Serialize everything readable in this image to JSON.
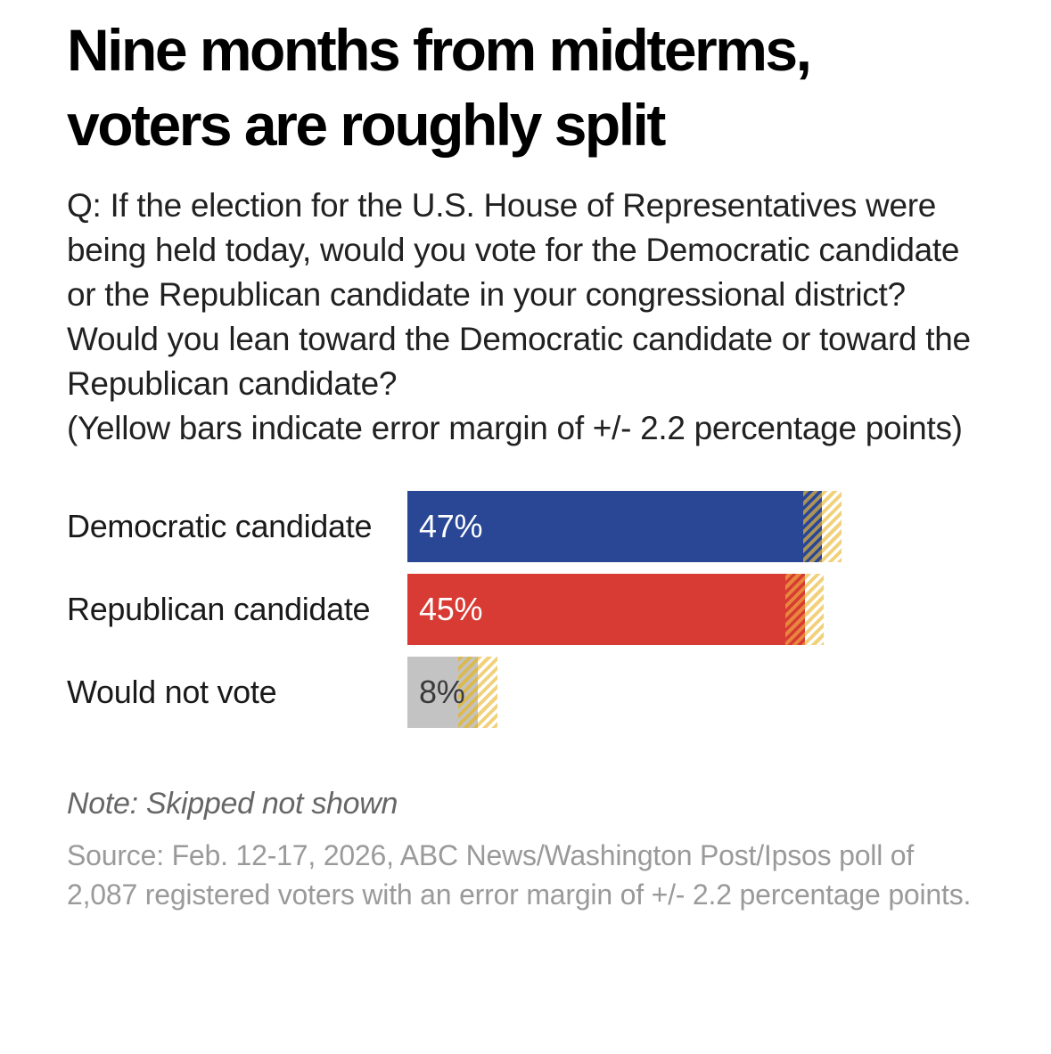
{
  "header": {
    "title": "Nine months from midterms, voters are roughly split"
  },
  "question": {
    "text": "Q: If the election for the U.S. House of Representatives were being held today, would you vote for the Democratic candidate or the Republican candidate in your congressional district? Would you lean toward the Democratic candidate or toward the Republican candidate?",
    "error_note": "(Yellow bars indicate error margin of +/- 2.2 percentage points)"
  },
  "chart_data": {
    "type": "bar",
    "orientation": "horizontal",
    "unit": "percent",
    "categories": [
      "Democratic candidate",
      "Republican candidate",
      "Would not vote"
    ],
    "values": [
      47,
      45,
      8
    ],
    "error_margin": 2.2,
    "error_stripe_on_white_color": "#f2d17c",
    "gridlines": false,
    "axis_shown": false,
    "series": [
      {
        "name": "Democratic candidate",
        "value": 47,
        "display": "47%",
        "bar_color": "#294795",
        "value_text_color": "#ffffff",
        "stripe_on_bar_color": "#ab935a"
      },
      {
        "name": "Republican candidate",
        "value": 45,
        "display": "45%",
        "bar_color": "#d73b33",
        "value_text_color": "#ffffff",
        "stripe_on_bar_color": "#e8863d"
      },
      {
        "name": "Would not vote",
        "value": 8,
        "display": "8%",
        "bar_color": "#c3c3c3",
        "value_text_color": "#3a3a3a",
        "stripe_on_bar_color": "#dcb94f"
      }
    ]
  },
  "footer": {
    "note": "Note: Skipped not shown",
    "source": "Source: Feb. 12-17, 2026, ABC News/Washington Post/Ipsos poll of 2,087 registered voters with an error margin of +/- 2.2 percentage points."
  }
}
